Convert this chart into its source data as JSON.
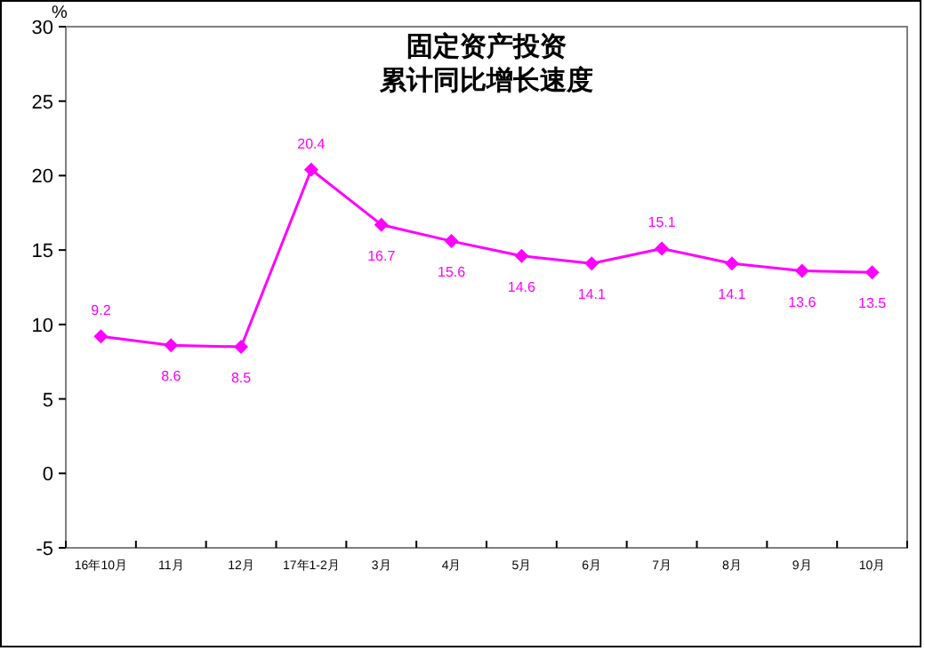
{
  "chart_data": {
    "type": "line",
    "title": "固定资产投资",
    "subtitle": "累计同比增长速度",
    "ylabel": "%",
    "categories": [
      "16年10月",
      "11月",
      "12月",
      "17年1-2月",
      "3月",
      "4月",
      "5月",
      "6月",
      "7月",
      "8月",
      "9月",
      "10月"
    ],
    "series": [
      {
        "color": "#ff00ff",
        "values": [
          9.2,
          8.6,
          8.5,
          20.4,
          16.7,
          15.6,
          14.6,
          14.1,
          15.1,
          14.1,
          13.6,
          13.5
        ]
      }
    ],
    "ylim": [
      -5,
      30
    ],
    "yticks": [
      -5,
      0,
      5,
      10,
      15,
      20,
      25,
      30
    ],
    "marker": "diamond",
    "line_style": "solid",
    "data_labels": true,
    "grid": false
  }
}
